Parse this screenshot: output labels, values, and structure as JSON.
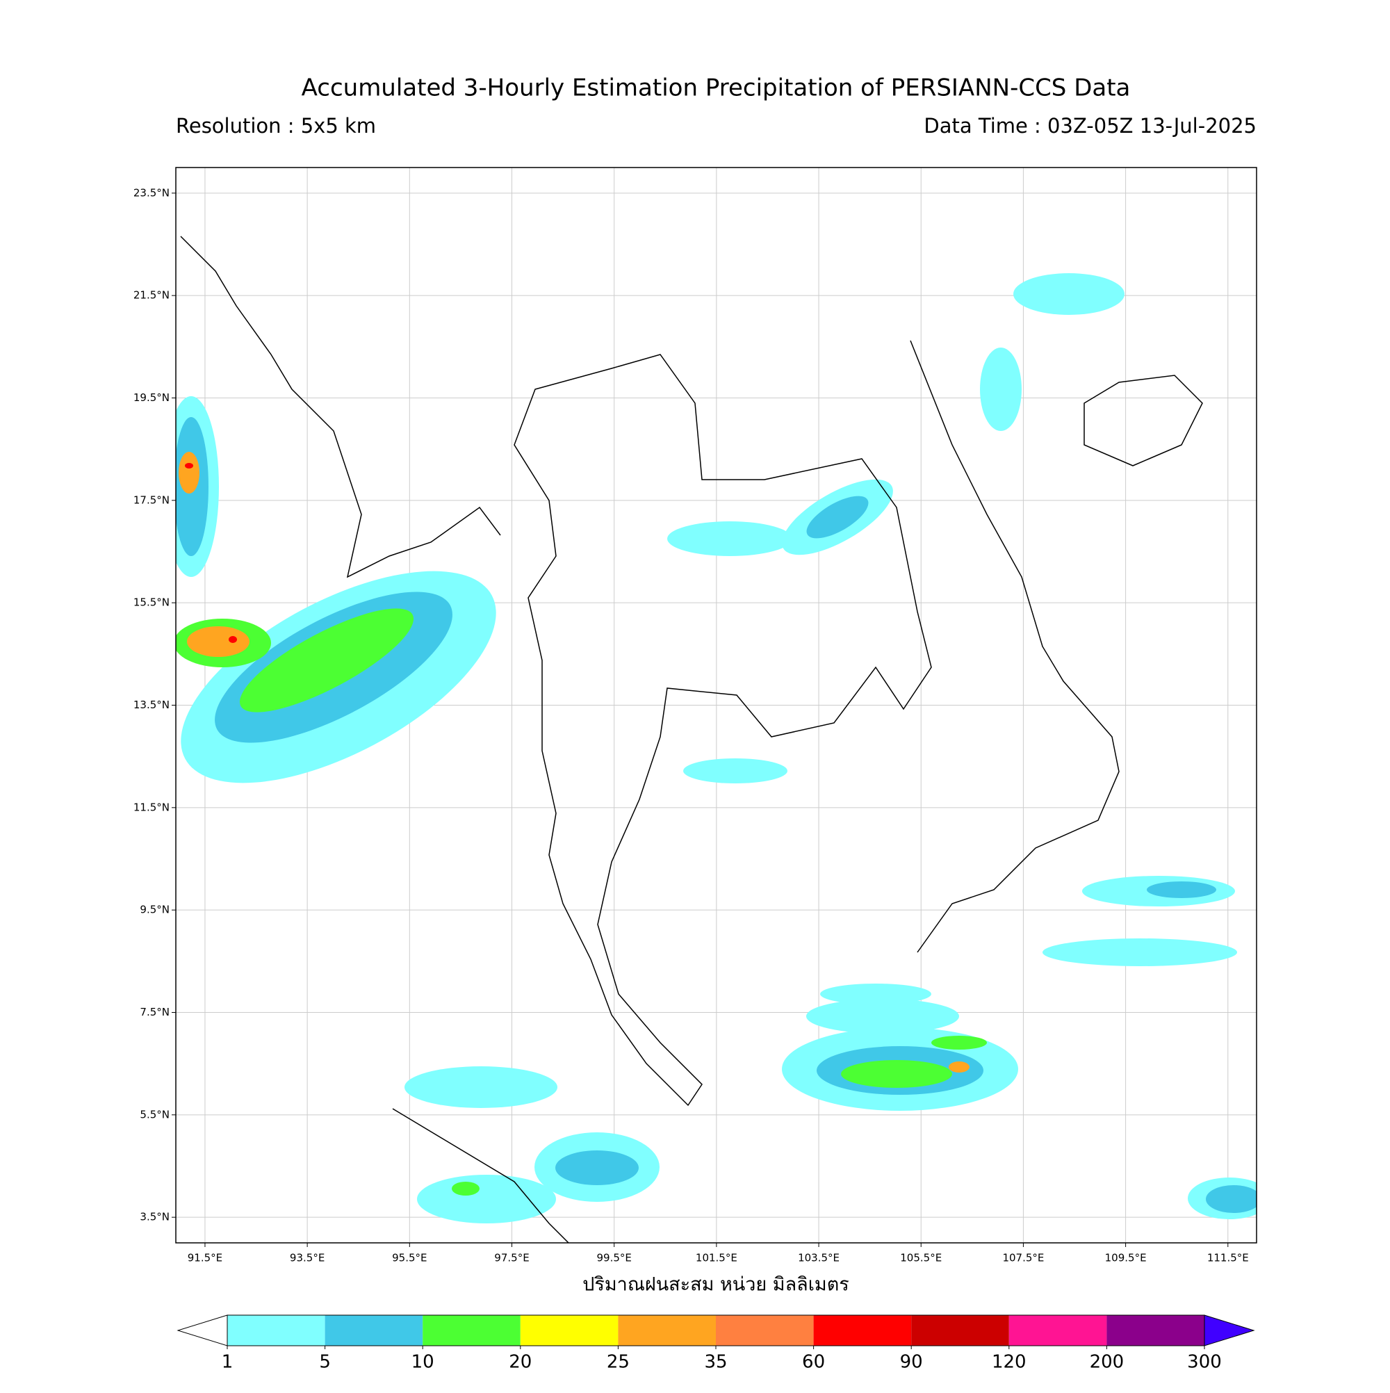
{
  "title": "Accumulated 3-Hourly Estimation Precipitation of PERSIANN-CCS Data",
  "resolution": "Resolution : 5x5 km",
  "data_time": "Data Time : 03Z-05Z 13-Jul-2025",
  "map": {
    "xlim": [
      90.93,
      112.06
    ],
    "ylim": [
      3.0,
      24.0
    ],
    "xticks": [
      {
        "value": 91.5,
        "label": "91.5°E"
      },
      {
        "value": 93.5,
        "label": "93.5°E"
      },
      {
        "value": 95.5,
        "label": "95.5°E"
      },
      {
        "value": 97.5,
        "label": "97.5°E"
      },
      {
        "value": 99.5,
        "label": "99.5°E"
      },
      {
        "value": 101.5,
        "label": "101.5°E"
      },
      {
        "value": 103.5,
        "label": "103.5°E"
      },
      {
        "value": 105.5,
        "label": "105.5°E"
      },
      {
        "value": 107.5,
        "label": "107.5°E"
      },
      {
        "value": 109.5,
        "label": "109.5°E"
      },
      {
        "value": 111.5,
        "label": "111.5°E"
      }
    ],
    "yticks": [
      {
        "value": 3.5,
        "label": "3.5°N"
      },
      {
        "value": 5.5,
        "label": "5.5°N"
      },
      {
        "value": 7.5,
        "label": "7.5°N"
      },
      {
        "value": 9.5,
        "label": "9.5°N"
      },
      {
        "value": 11.5,
        "label": "11.5°N"
      },
      {
        "value": 13.5,
        "label": "13.5°N"
      },
      {
        "value": 15.5,
        "label": "15.5°N"
      },
      {
        "value": 17.5,
        "label": "17.5°N"
      },
      {
        "value": 19.5,
        "label": "19.5°N"
      },
      {
        "value": 21.5,
        "label": "21.5°N"
      },
      {
        "value": 23.5,
        "label": "23.5°N"
      }
    ],
    "grid": true
  },
  "colorbar": {
    "label": "ปริมาณฝนสะสม หน่วย มิลลิเมตร",
    "levels": [
      1,
      5,
      10,
      20,
      25,
      35,
      60,
      90,
      120,
      200,
      300
    ],
    "colors": [
      "#80ffff",
      "#40c8e8",
      "#4cff33",
      "#ffff00",
      "#ffa520",
      "#ff8040",
      "#ff0000",
      "#cc0000",
      "#ff1493",
      "#8b008b"
    ],
    "under_color": "#ffffff",
    "over_color": "#4000ff"
  }
}
